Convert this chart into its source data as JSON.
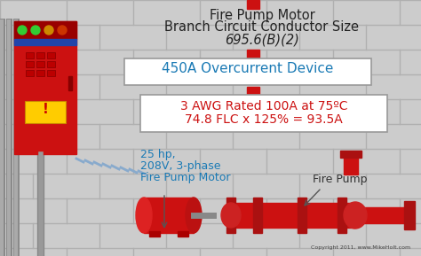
{
  "title_line1": "Fire Pump Motor",
  "title_line2": "Branch Circuit Conductor Size",
  "title_line3": "695.6(B)(2)",
  "label_overcurrent": "450A Overcurrent Device",
  "label_awg_line1": "3 AWG Rated 100A at 75ºC",
  "label_awg_line2": "74.8 FLC x 125% = 93.5A",
  "label_motor_line1": "25 hp,",
  "label_motor_line2": "208V, 3-phase",
  "label_motor_line3": "Fire Pump Motor",
  "label_fire_pump": "Fire Pump",
  "copyright": "Copyright 2011, www.MikeHolt.com",
  "bg_color": "#c8c8c8",
  "panel_red": "#cc1111",
  "pump_red": "#cc1111",
  "title_color": "#222222",
  "overcurrent_color": "#1a7ab5",
  "awg_color": "#cc1111",
  "motor_label_color": "#1a7ab5",
  "fire_pump_label_color": "#333333",
  "box_border": "#999999",
  "indicator_colors": [
    "#33cc33",
    "#33cc33",
    "#cc8800",
    "#cc3300"
  ]
}
